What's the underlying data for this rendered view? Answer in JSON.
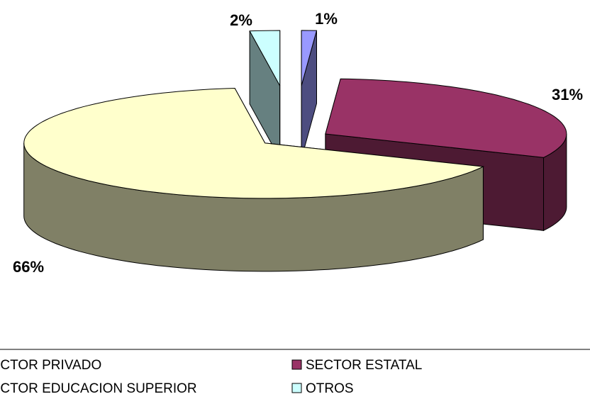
{
  "chart_data": {
    "type": "pie",
    "categories": [
      "SECTOR PRIVADO",
      "SECTOR ESTATAL",
      "SECTOR EDUCACION SUPERIOR",
      "OTROS"
    ],
    "values": [
      1,
      31,
      66,
      2
    ],
    "value_labels": [
      "1%",
      "31%",
      "66%",
      "2%"
    ],
    "colors": [
      "#9999FF",
      "#993366",
      "#FFFFCC",
      "#CCFFFF"
    ],
    "legend": "bottom"
  }
}
